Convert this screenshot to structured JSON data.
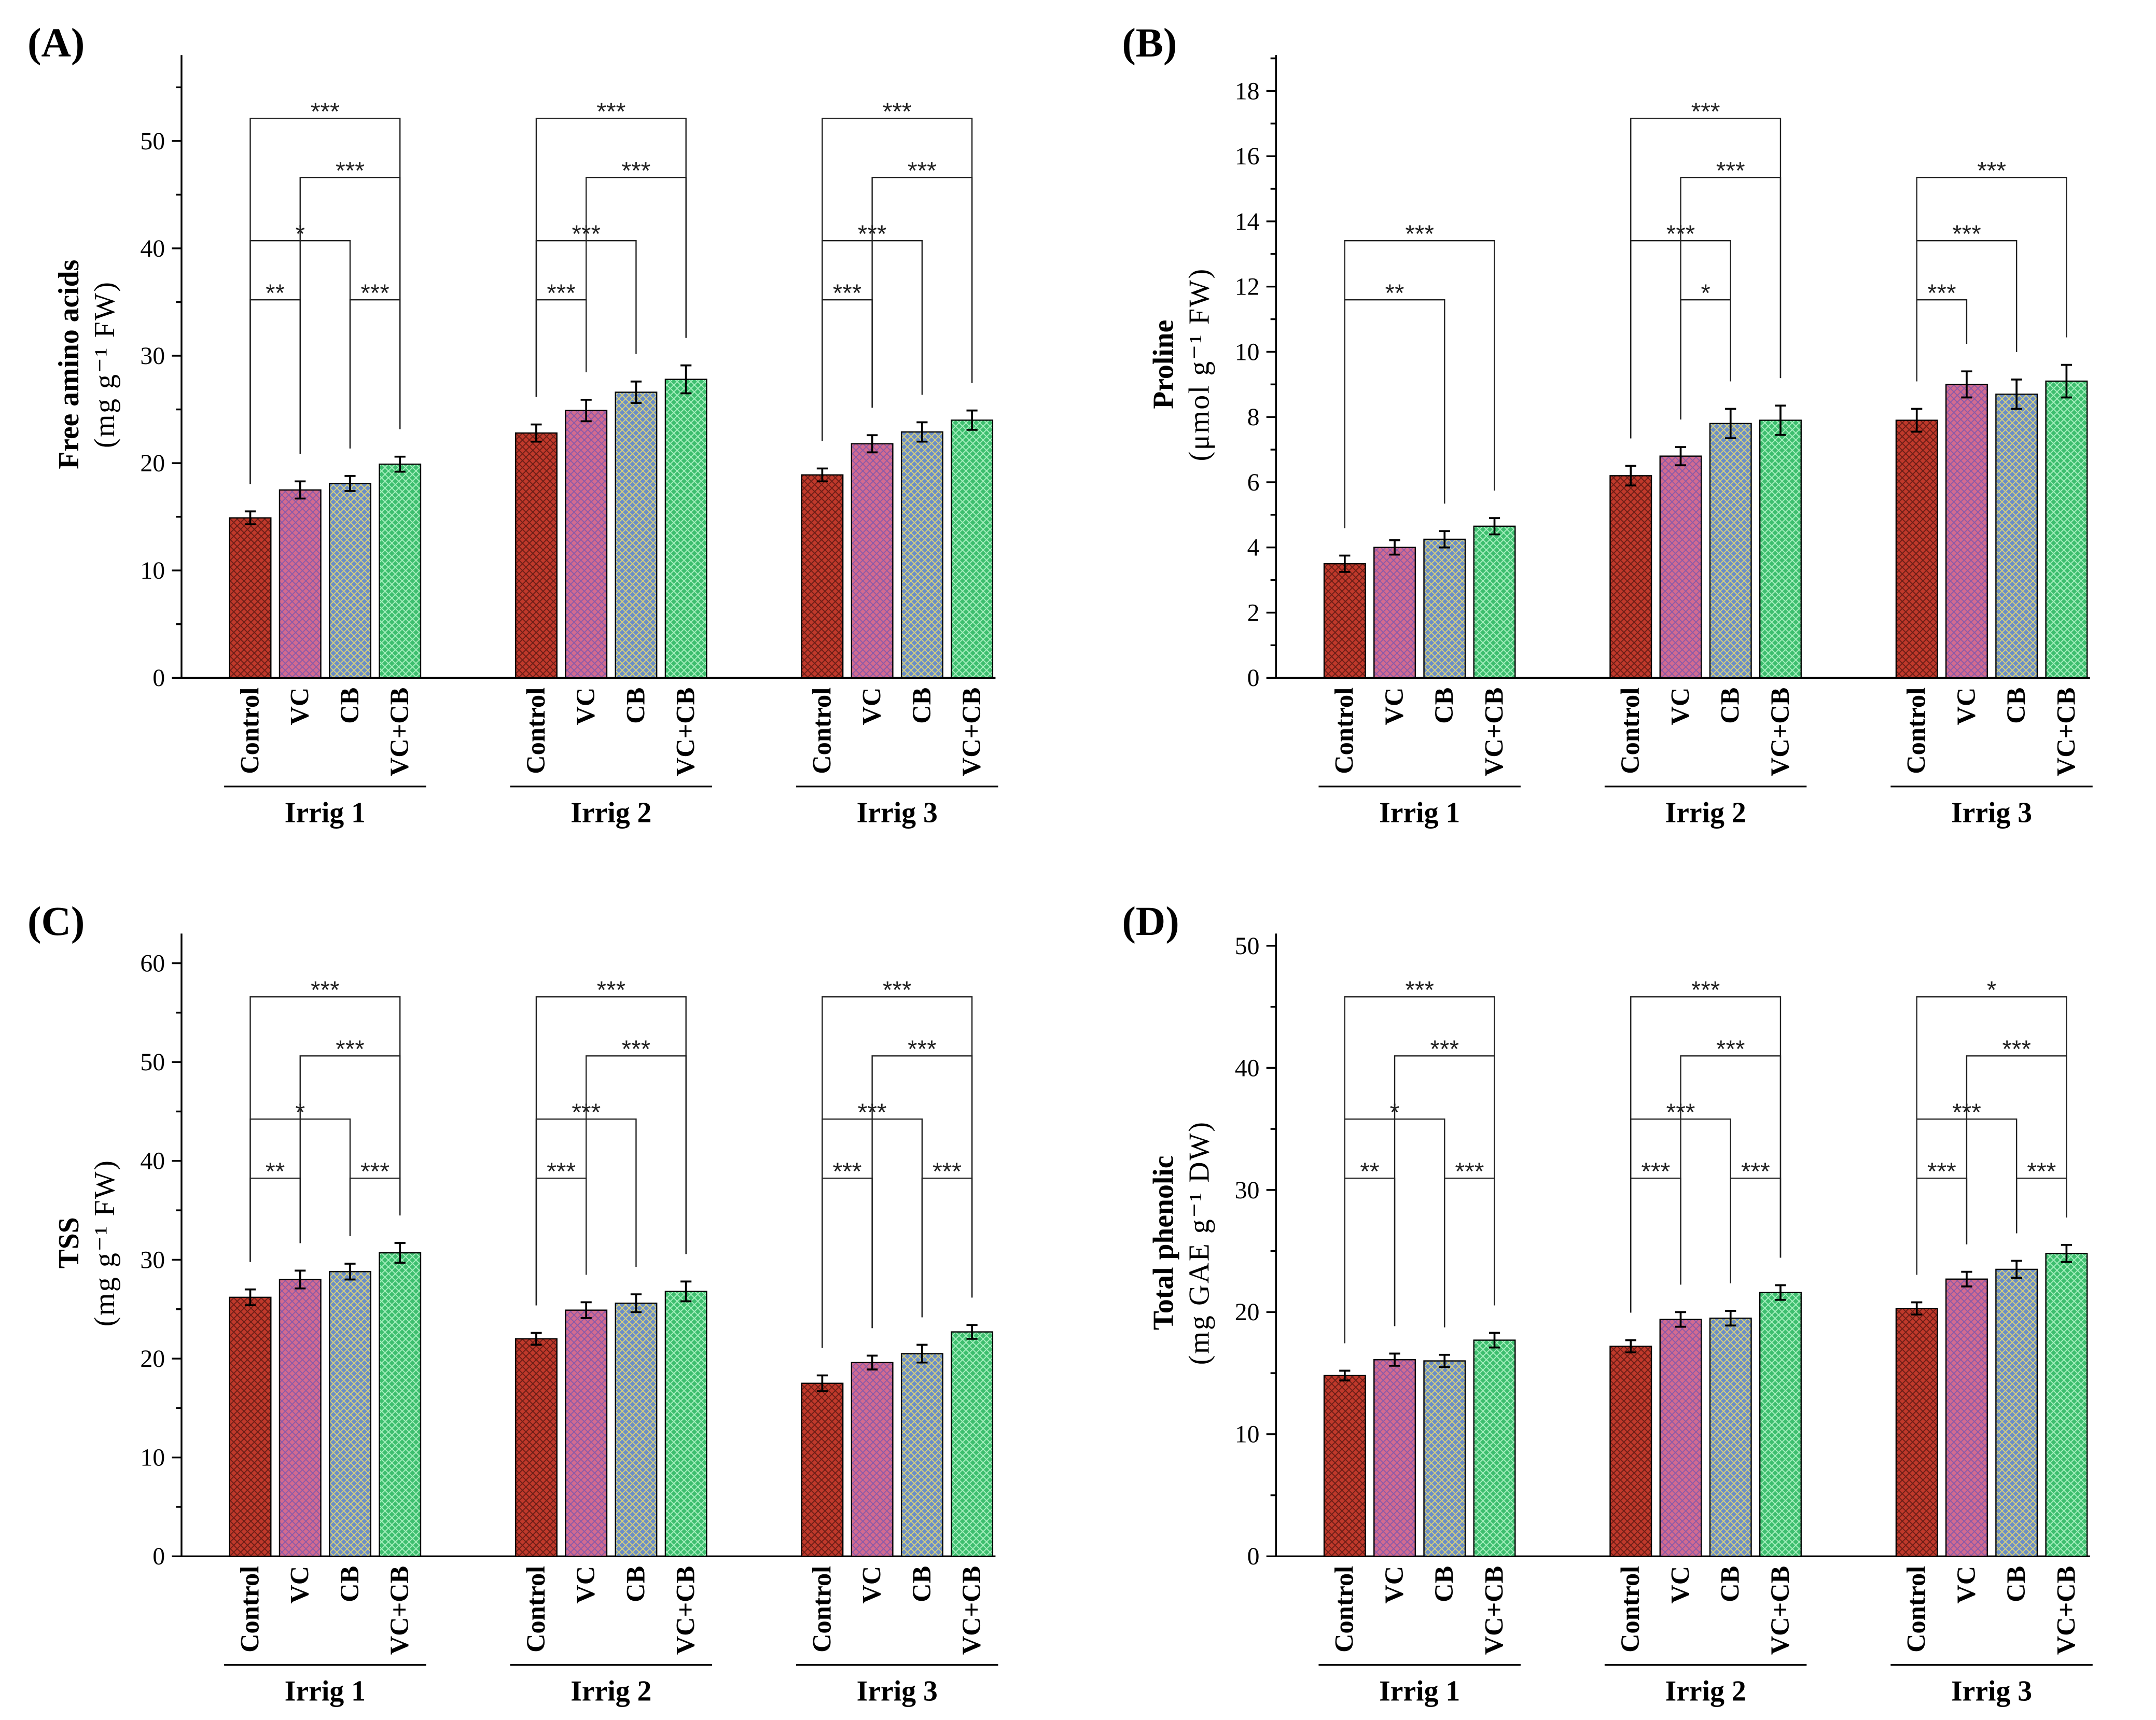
{
  "bar_colors": [
    {
      "fill": "#c0392b",
      "hatch": "#6b1d16"
    },
    {
      "fill": "#d36b8f",
      "hatch": "#8a5aa8"
    },
    {
      "fill": "#6a8dc8",
      "hatch": "#d9d27a"
    },
    {
      "fill": "#3dbe6e",
      "hatch": "#a8f0c0"
    }
  ],
  "chart_data": [
    {
      "type": "bar",
      "panel_label": "(A)",
      "ylabel": "Free amino acids",
      "yunit": "(mg g⁻¹ FW)",
      "ylim": [
        0,
        58
      ],
      "yticks": [
        0,
        10,
        20,
        30,
        40,
        50
      ],
      "yminor": 5,
      "categories": [
        "Control",
        "VC",
        "CB",
        "VC+CB"
      ],
      "series": [
        {
          "name": "Irrig 1",
          "values": [
            14.9,
            17.5,
            18.1,
            19.9
          ],
          "errors": [
            0.6,
            0.8,
            0.7,
            0.7
          ]
        },
        {
          "name": "Irrig 2",
          "values": [
            22.8,
            24.9,
            26.6,
            27.8
          ],
          "errors": [
            0.8,
            1.0,
            1.0,
            1.3
          ]
        },
        {
          "name": "Irrig 3",
          "values": [
            18.9,
            21.8,
            22.9,
            24.0
          ],
          "errors": [
            0.6,
            0.8,
            0.9,
            0.9
          ]
        }
      ],
      "significance": [
        {
          "group": 0,
          "from": 0,
          "to": 3,
          "label": "***",
          "level": 1
        },
        {
          "group": 0,
          "from": 1,
          "to": 3,
          "label": "***",
          "level": 2
        },
        {
          "group": 0,
          "from": 0,
          "to": 2,
          "label": "*",
          "level": 3
        },
        {
          "group": 0,
          "from": 0,
          "to": 1,
          "label": "**",
          "level": 4
        },
        {
          "group": 0,
          "from": 2,
          "to": 3,
          "label": "***",
          "level": 4
        },
        {
          "group": 1,
          "from": 0,
          "to": 3,
          "label": "***",
          "level": 1
        },
        {
          "group": 1,
          "from": 1,
          "to": 3,
          "label": "***",
          "level": 2
        },
        {
          "group": 1,
          "from": 0,
          "to": 2,
          "label": "***",
          "level": 3
        },
        {
          "group": 1,
          "from": 0,
          "to": 1,
          "label": "***",
          "level": 4
        },
        {
          "group": 2,
          "from": 0,
          "to": 3,
          "label": "***",
          "level": 1
        },
        {
          "group": 2,
          "from": 1,
          "to": 3,
          "label": "***",
          "level": 2
        },
        {
          "group": 2,
          "from": 0,
          "to": 2,
          "label": "***",
          "level": 3
        },
        {
          "group": 2,
          "from": 0,
          "to": 1,
          "label": "***",
          "level": 4
        }
      ]
    },
    {
      "type": "bar",
      "panel_label": "(B)",
      "ylabel": "Proline",
      "yunit": "(μmol g⁻¹ FW)",
      "ylim": [
        0,
        19.1
      ],
      "yticks": [
        0,
        2,
        4,
        6,
        8,
        10,
        12,
        14,
        16,
        18
      ],
      "yminor": 1,
      "categories": [
        "Control",
        "VC",
        "CB",
        "VC+CB"
      ],
      "series": [
        {
          "name": "Irrig 1",
          "values": [
            3.5,
            4.0,
            4.25,
            4.65
          ],
          "errors": [
            0.25,
            0.22,
            0.25,
            0.25
          ]
        },
        {
          "name": "Irrig 2",
          "values": [
            6.2,
            6.8,
            7.8,
            7.9
          ],
          "errors": [
            0.3,
            0.28,
            0.45,
            0.45
          ]
        },
        {
          "name": "Irrig 3",
          "values": [
            7.9,
            9.0,
            8.7,
            9.1
          ],
          "errors": [
            0.35,
            0.4,
            0.45,
            0.5
          ]
        }
      ],
      "significance": [
        {
          "group": 0,
          "from": 0,
          "to": 3,
          "label": "***",
          "level": 3
        },
        {
          "group": 0,
          "from": 0,
          "to": 2,
          "label": "**",
          "level": 4
        },
        {
          "group": 1,
          "from": 0,
          "to": 3,
          "label": "***",
          "level": 1
        },
        {
          "group": 1,
          "from": 1,
          "to": 3,
          "label": "***",
          "level": 2
        },
        {
          "group": 1,
          "from": 0,
          "to": 2,
          "label": "***",
          "level": 3
        },
        {
          "group": 1,
          "from": 1,
          "to": 2,
          "label": "*",
          "level": 4
        },
        {
          "group": 2,
          "from": 0,
          "to": 3,
          "label": "***",
          "level": 2
        },
        {
          "group": 2,
          "from": 0,
          "to": 2,
          "label": "***",
          "level": 3
        },
        {
          "group": 2,
          "from": 0,
          "to": 1,
          "label": "***",
          "level": 4
        }
      ]
    },
    {
      "type": "bar",
      "panel_label": "(C)",
      "ylabel": "TSS",
      "yunit": "(mg g⁻¹ FW)",
      "ylim": [
        0,
        63
      ],
      "yticks": [
        0,
        10,
        20,
        30,
        40,
        50,
        60
      ],
      "yminor": 5,
      "categories": [
        "Control",
        "VC",
        "CB",
        "VC+CB"
      ],
      "series": [
        {
          "name": "Irrig 1",
          "values": [
            26.2,
            28.0,
            28.8,
            30.7
          ],
          "errors": [
            0.8,
            0.9,
            0.8,
            1.0
          ]
        },
        {
          "name": "Irrig 2",
          "values": [
            22.0,
            24.9,
            25.6,
            26.8
          ],
          "errors": [
            0.6,
            0.8,
            0.9,
            1.0
          ]
        },
        {
          "name": "Irrig 3",
          "values": [
            17.5,
            19.6,
            20.5,
            22.7
          ],
          "errors": [
            0.8,
            0.7,
            0.9,
            0.7
          ]
        }
      ],
      "significance": [
        {
          "group": 0,
          "from": 0,
          "to": 3,
          "label": "***",
          "level": 1
        },
        {
          "group": 0,
          "from": 1,
          "to": 3,
          "label": "***",
          "level": 2
        },
        {
          "group": 0,
          "from": 0,
          "to": 2,
          "label": "*",
          "level": 3
        },
        {
          "group": 0,
          "from": 0,
          "to": 1,
          "label": "**",
          "level": 4
        },
        {
          "group": 0,
          "from": 2,
          "to": 3,
          "label": "***",
          "level": 4
        },
        {
          "group": 1,
          "from": 0,
          "to": 3,
          "label": "***",
          "level": 1
        },
        {
          "group": 1,
          "from": 1,
          "to": 3,
          "label": "***",
          "level": 2
        },
        {
          "group": 1,
          "from": 0,
          "to": 2,
          "label": "***",
          "level": 3
        },
        {
          "group": 1,
          "from": 0,
          "to": 1,
          "label": "***",
          "level": 4
        },
        {
          "group": 2,
          "from": 0,
          "to": 3,
          "label": "***",
          "level": 1
        },
        {
          "group": 2,
          "from": 1,
          "to": 3,
          "label": "***",
          "level": 2
        },
        {
          "group": 2,
          "from": 0,
          "to": 2,
          "label": "***",
          "level": 3
        },
        {
          "group": 2,
          "from": 0,
          "to": 1,
          "label": "***",
          "level": 4
        },
        {
          "group": 2,
          "from": 2,
          "to": 3,
          "label": "***",
          "level": 4
        }
      ]
    },
    {
      "type": "bar",
      "panel_label": "(D)",
      "ylabel": "Total phenolic",
      "yunit": "(mg GAE g⁻¹ DW)",
      "ylim": [
        0,
        51
      ],
      "yticks": [
        0,
        10,
        20,
        30,
        40,
        50
      ],
      "yminor": 5,
      "categories": [
        "Control",
        "VC",
        "CB",
        "VC+CB"
      ],
      "series": [
        {
          "name": "Irrig 1",
          "values": [
            14.8,
            16.1,
            16.0,
            17.7
          ],
          "errors": [
            0.4,
            0.5,
            0.5,
            0.6
          ]
        },
        {
          "name": "Irrig 2",
          "values": [
            17.2,
            19.4,
            19.5,
            21.6
          ],
          "errors": [
            0.5,
            0.6,
            0.6,
            0.6
          ]
        },
        {
          "name": "Irrig 3",
          "values": [
            20.3,
            22.7,
            23.5,
            24.8
          ],
          "errors": [
            0.5,
            0.6,
            0.7,
            0.7
          ]
        }
      ],
      "significance": [
        {
          "group": 0,
          "from": 0,
          "to": 3,
          "label": "***",
          "level": 1
        },
        {
          "group": 0,
          "from": 1,
          "to": 3,
          "label": "***",
          "level": 2
        },
        {
          "group": 0,
          "from": 0,
          "to": 2,
          "label": "*",
          "level": 3
        },
        {
          "group": 0,
          "from": 0,
          "to": 1,
          "label": "**",
          "level": 4
        },
        {
          "group": 0,
          "from": 2,
          "to": 3,
          "label": "***",
          "level": 4
        },
        {
          "group": 1,
          "from": 0,
          "to": 3,
          "label": "***",
          "level": 1
        },
        {
          "group": 1,
          "from": 1,
          "to": 3,
          "label": "***",
          "level": 2
        },
        {
          "group": 1,
          "from": 0,
          "to": 2,
          "label": "***",
          "level": 3
        },
        {
          "group": 1,
          "from": 0,
          "to": 1,
          "label": "***",
          "level": 4
        },
        {
          "group": 1,
          "from": 2,
          "to": 3,
          "label": "***",
          "level": 4
        },
        {
          "group": 2,
          "from": 0,
          "to": 3,
          "label": "*",
          "level": 1
        },
        {
          "group": 2,
          "from": 1,
          "to": 3,
          "label": "***",
          "level": 2
        },
        {
          "group": 2,
          "from": 0,
          "to": 2,
          "label": "***",
          "level": 3
        },
        {
          "group": 2,
          "from": 0,
          "to": 1,
          "label": "***",
          "level": 4
        },
        {
          "group": 2,
          "from": 2,
          "to": 3,
          "label": "***",
          "level": 4
        }
      ]
    }
  ]
}
